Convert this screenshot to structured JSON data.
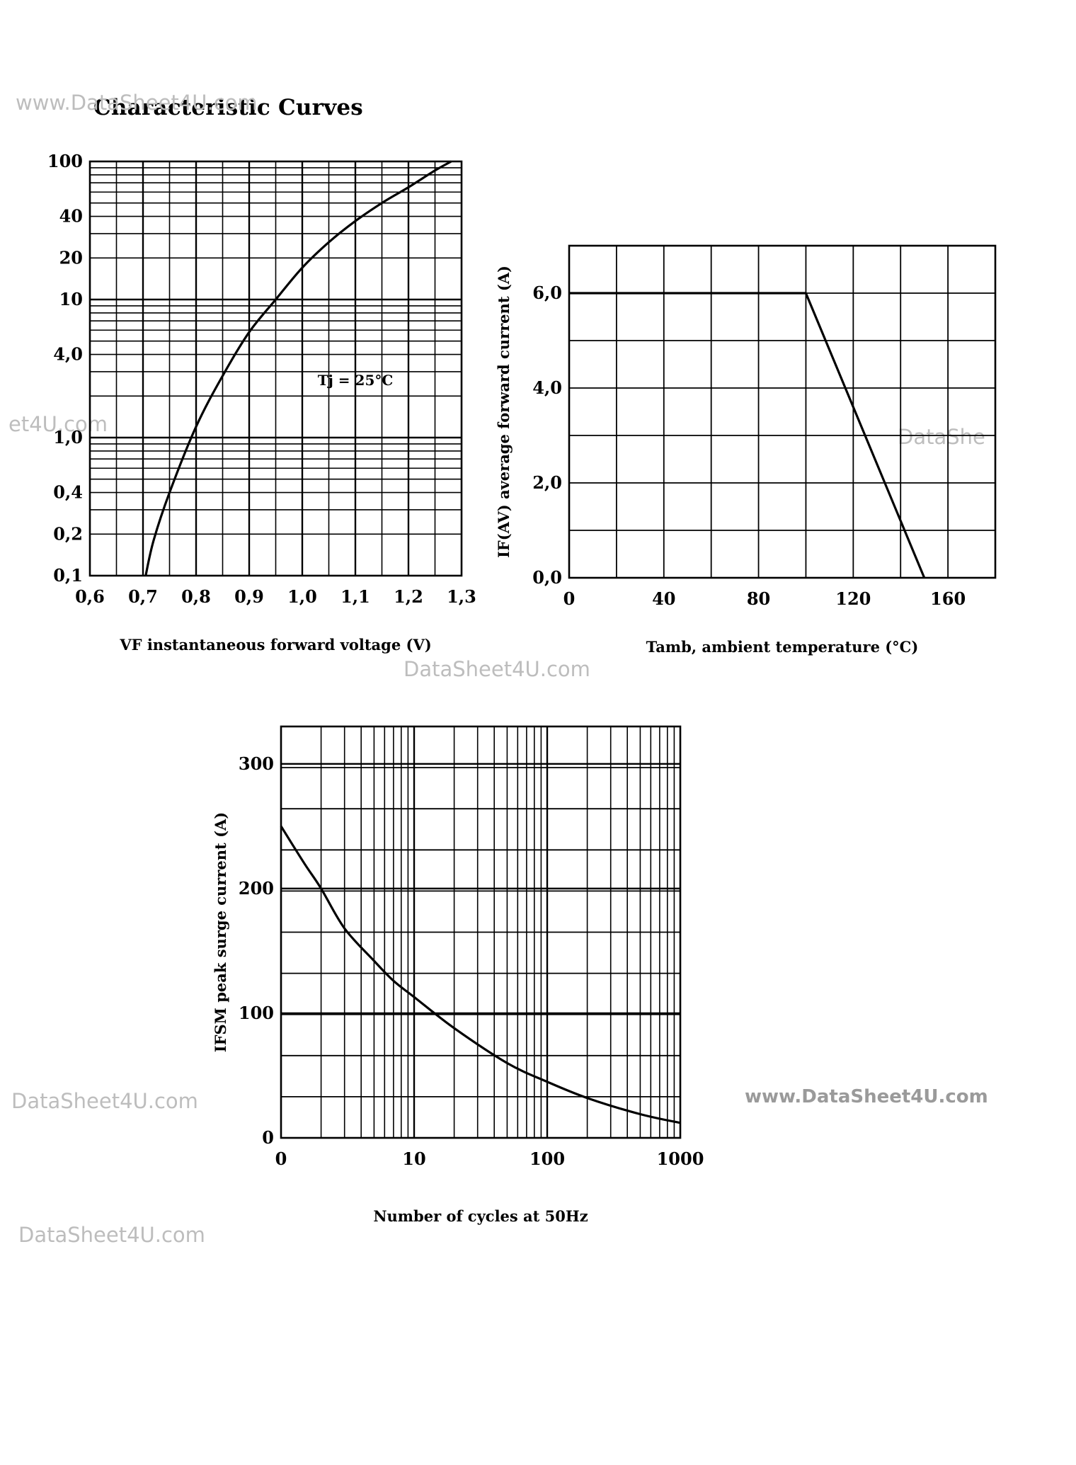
{
  "page": {
    "title": "Characteristic Curves",
    "watermarks": {
      "w1": "www.DataSheet4U.com",
      "w2": "et4U.com",
      "w3": "DataShe",
      "w4": "DataSheet4U.com",
      "w5": "DataSheet4U.com",
      "w6": "www.DataSheet4U.com",
      "w7": "DataSheet4U.com"
    }
  },
  "chart_data": [
    {
      "id": "forward",
      "type": "line",
      "title": "",
      "xlabel": "VF instantaneous forward voltage (V)",
      "ylabel": "",
      "xlim": [
        0.6,
        1.3
      ],
      "ylim": [
        0.1,
        100
      ],
      "yscale": "log",
      "x_tick_labels": [
        "0,6",
        "0,7",
        "0,8",
        "0,9",
        "1,0",
        "1,1",
        "1,2",
        "1,3"
      ],
      "y_tick_labels": [
        "0,1",
        "0,2",
        "0,4",
        "1,0",
        "4,0",
        "10",
        "20",
        "40",
        "100"
      ],
      "annotation": "Tj = 25°C",
      "grid": true,
      "series": [
        {
          "x": [
            0.705,
            0.72,
            0.75,
            0.8,
            0.85,
            0.9,
            0.95,
            1.0,
            1.05,
            1.1,
            1.15,
            1.2,
            1.25,
            1.3
          ],
          "y": [
            0.1,
            0.18,
            0.4,
            1.2,
            2.8,
            5.8,
            10,
            17,
            26,
            37,
            50,
            65,
            86,
            110
          ]
        }
      ]
    },
    {
      "id": "derating",
      "type": "line",
      "title": "",
      "xlabel": "Tamb, ambient temperature (°C)",
      "ylabel": "IF(AV) average forward current (A)",
      "xlim": [
        0,
        180
      ],
      "ylim": [
        0,
        7
      ],
      "x_tick_labels": [
        "0",
        "40",
        "80",
        "120",
        "160"
      ],
      "y_tick_labels": [
        "0,0",
        "2,0",
        "4,0",
        "6,0"
      ],
      "grid": true,
      "series": [
        {
          "x": [
            0,
            100,
            150
          ],
          "y": [
            6,
            6,
            0
          ]
        }
      ]
    },
    {
      "id": "surge",
      "type": "line",
      "title": "",
      "xlabel": "Number of cycles at 50Hz",
      "ylabel": "IFSM peak surge current (A)",
      "xscale": "log",
      "xlim": [
        1,
        1000
      ],
      "ylim": [
        0,
        330
      ],
      "x_tick_labels": [
        "0",
        "10",
        "100",
        "1000"
      ],
      "y_tick_labels": [
        "0",
        "100",
        "200",
        "300"
      ],
      "grid": true,
      "series": [
        {
          "x": [
            1,
            1.5,
            2,
            3,
            5,
            7,
            10,
            20,
            50,
            100,
            200,
            500,
            1000
          ],
          "y": [
            250,
            220,
            200,
            168,
            142,
            126,
            113,
            88,
            60,
            45,
            32,
            19,
            12
          ]
        }
      ]
    }
  ]
}
